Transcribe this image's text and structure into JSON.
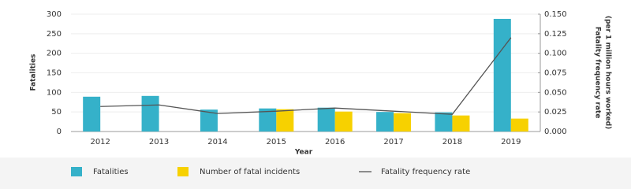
{
  "chart_data": {
    "type": "bar-line",
    "x_label": "Year",
    "y_label": "Fatalities",
    "y2_label": [
      "Fatality frequency rate",
      "(per 1 million hours worked)"
    ],
    "categories": [
      "2012",
      "2013",
      "2014",
      "2015",
      "2016",
      "2017",
      "2018",
      "2019"
    ],
    "series": [
      {
        "name": "Fatalities",
        "type": "bar",
        "color": "#35b1c9",
        "values": [
          89,
          91,
          56,
          59,
          61,
          50,
          49,
          288
        ]
      },
      {
        "name": "Number of fatal incidents",
        "type": "bar",
        "color": "#f7d100",
        "values": [
          null,
          null,
          null,
          57,
          51,
          47,
          41,
          33
        ]
      },
      {
        "name": "Fatality frequency rate",
        "type": "line",
        "axis": "y2",
        "color": "#555555",
        "values": [
          0.032,
          0.034,
          0.023,
          0.026,
          0.03,
          0.026,
          0.022,
          0.12
        ]
      }
    ],
    "ylim": [
      0,
      300
    ],
    "yticks": [
      0,
      50,
      100,
      150,
      200,
      250,
      300
    ],
    "y2lim": [
      0,
      0.15
    ],
    "y2ticks": [
      {
        "value": 0,
        "label": "0.000"
      },
      {
        "value": 0.025,
        "label": "0.025"
      },
      {
        "value": 0.05,
        "label": "0.050"
      },
      {
        "value": 0.075,
        "label": "0.075"
      },
      {
        "value": 0.1,
        "label": "0.100"
      },
      {
        "value": 0.125,
        "label": "0.125"
      },
      {
        "value": 0.15,
        "label": "0.150"
      }
    ],
    "grid": true,
    "legend": "bottom"
  }
}
